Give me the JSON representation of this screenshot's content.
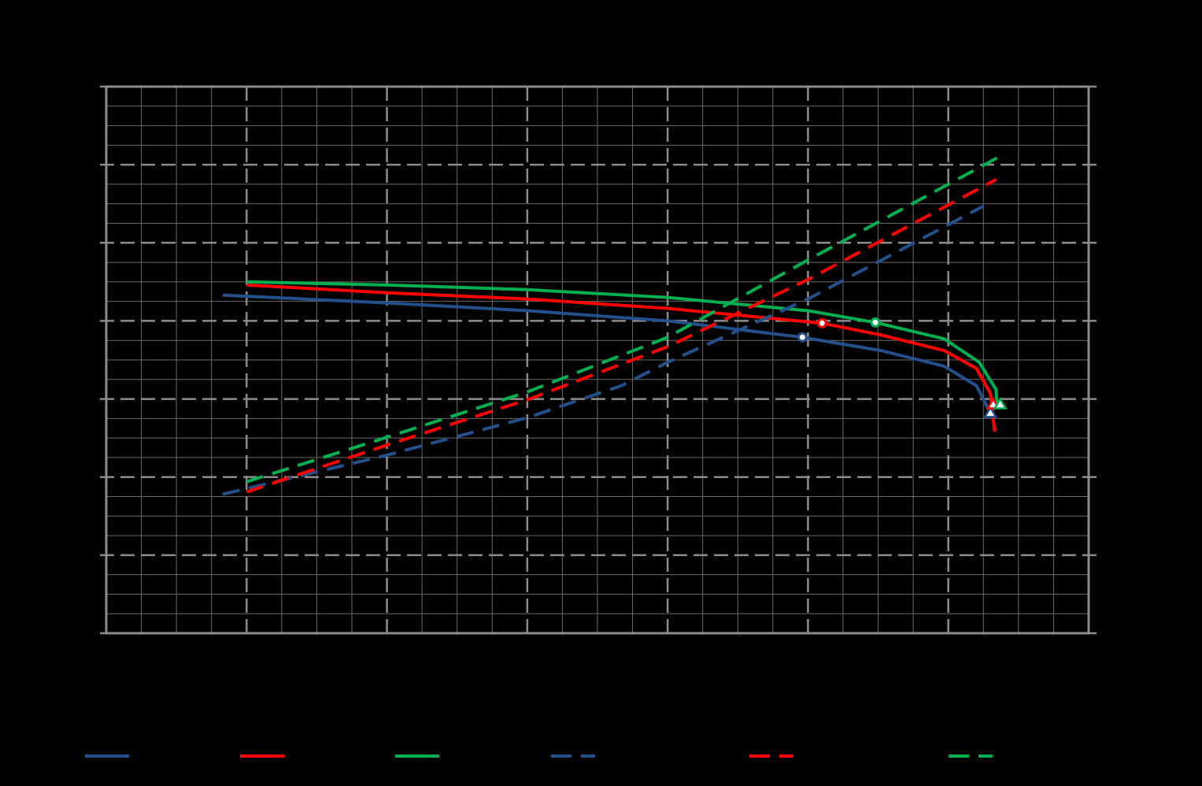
{
  "chart_data": {
    "type": "line",
    "xlim": [
      0,
      7
    ],
    "ylim": [
      0,
      7
    ],
    "xticks": [
      0,
      1,
      2,
      3,
      4,
      5,
      6,
      7
    ],
    "yticks": [
      0,
      1,
      2,
      3,
      4,
      5,
      6,
      7
    ],
    "minor_xticks": [
      0.25,
      0.5,
      0.75,
      1.25,
      1.5,
      1.75,
      2.25,
      2.5,
      2.75,
      3.25,
      3.5,
      3.75,
      4.25,
      4.5,
      4.75,
      5.25,
      5.5,
      5.75,
      6.25,
      6.5,
      6.75
    ],
    "minor_yticks": [
      0.25,
      0.5,
      0.75,
      1.25,
      1.5,
      1.75,
      2.25,
      2.5,
      2.75,
      3.25,
      3.5,
      3.75,
      4.25,
      4.5,
      4.75,
      5.25,
      5.5,
      5.75,
      6.25,
      6.5,
      6.75
    ],
    "grid": true,
    "legend": "bottom",
    "series": [
      {
        "color": "#23508a",
        "dashed": false,
        "x": [
          0.83,
          2.0,
          3.0,
          4.0,
          4.96,
          5.52,
          5.97,
          6.2,
          6.3
        ],
        "values": [
          4.33,
          4.23,
          4.13,
          4.0,
          3.79,
          3.62,
          3.42,
          3.17,
          2.82
        ]
      },
      {
        "color": "#ff0000",
        "dashed": false,
        "x": [
          1.0,
          2.0,
          3.0,
          4.0,
          5.1,
          5.52,
          5.97,
          6.2,
          6.3,
          6.33
        ],
        "values": [
          4.46,
          4.36,
          4.28,
          4.16,
          3.97,
          3.82,
          3.62,
          3.39,
          3.07,
          2.58
        ]
      },
      {
        "color": "#00b050",
        "dashed": false,
        "x": [
          1.0,
          2.0,
          3.0,
          4.0,
          5.0,
          5.48,
          5.97,
          6.22,
          6.34,
          6.35
        ],
        "values": [
          4.5,
          4.46,
          4.4,
          4.3,
          4.13,
          3.98,
          3.77,
          3.47,
          3.12,
          2.87
        ]
      },
      {
        "color": "#23508a",
        "dashed": true,
        "x": [
          0.83,
          2.0,
          3.0,
          3.67,
          4.0,
          5.0,
          6.25
        ],
        "values": [
          1.78,
          2.28,
          2.76,
          3.17,
          3.47,
          4.28,
          5.47
        ]
      },
      {
        "color": "#ff0000",
        "dashed": true,
        "x": [
          1.0,
          2.0,
          3.0,
          4.0,
          5.0,
          6.34
        ],
        "values": [
          1.81,
          2.41,
          2.99,
          3.67,
          4.53,
          5.81
        ]
      },
      {
        "color": "#00b050",
        "dashed": true,
        "x": [
          1.0,
          2.0,
          3.0,
          4.0,
          5.0,
          6.35
        ],
        "values": [
          1.94,
          2.51,
          3.09,
          3.79,
          4.78,
          6.09
        ]
      }
    ],
    "points": [
      {
        "shape": "circle",
        "color": "#23508a",
        "x": 4.96,
        "y": 3.79
      },
      {
        "shape": "circle",
        "color": "#ff0000",
        "x": 5.1,
        "y": 3.97
      },
      {
        "shape": "circle",
        "color": "#00b050",
        "x": 5.48,
        "y": 3.98
      },
      {
        "shape": "triangle",
        "color": "#23508a",
        "x": 6.3,
        "y": 2.82
      },
      {
        "shape": "triangle",
        "color": "#ff0000",
        "x": 6.32,
        "y": 2.93
      },
      {
        "shape": "triangle",
        "color": "#00b050",
        "x": 6.37,
        "y": 2.93
      }
    ]
  }
}
